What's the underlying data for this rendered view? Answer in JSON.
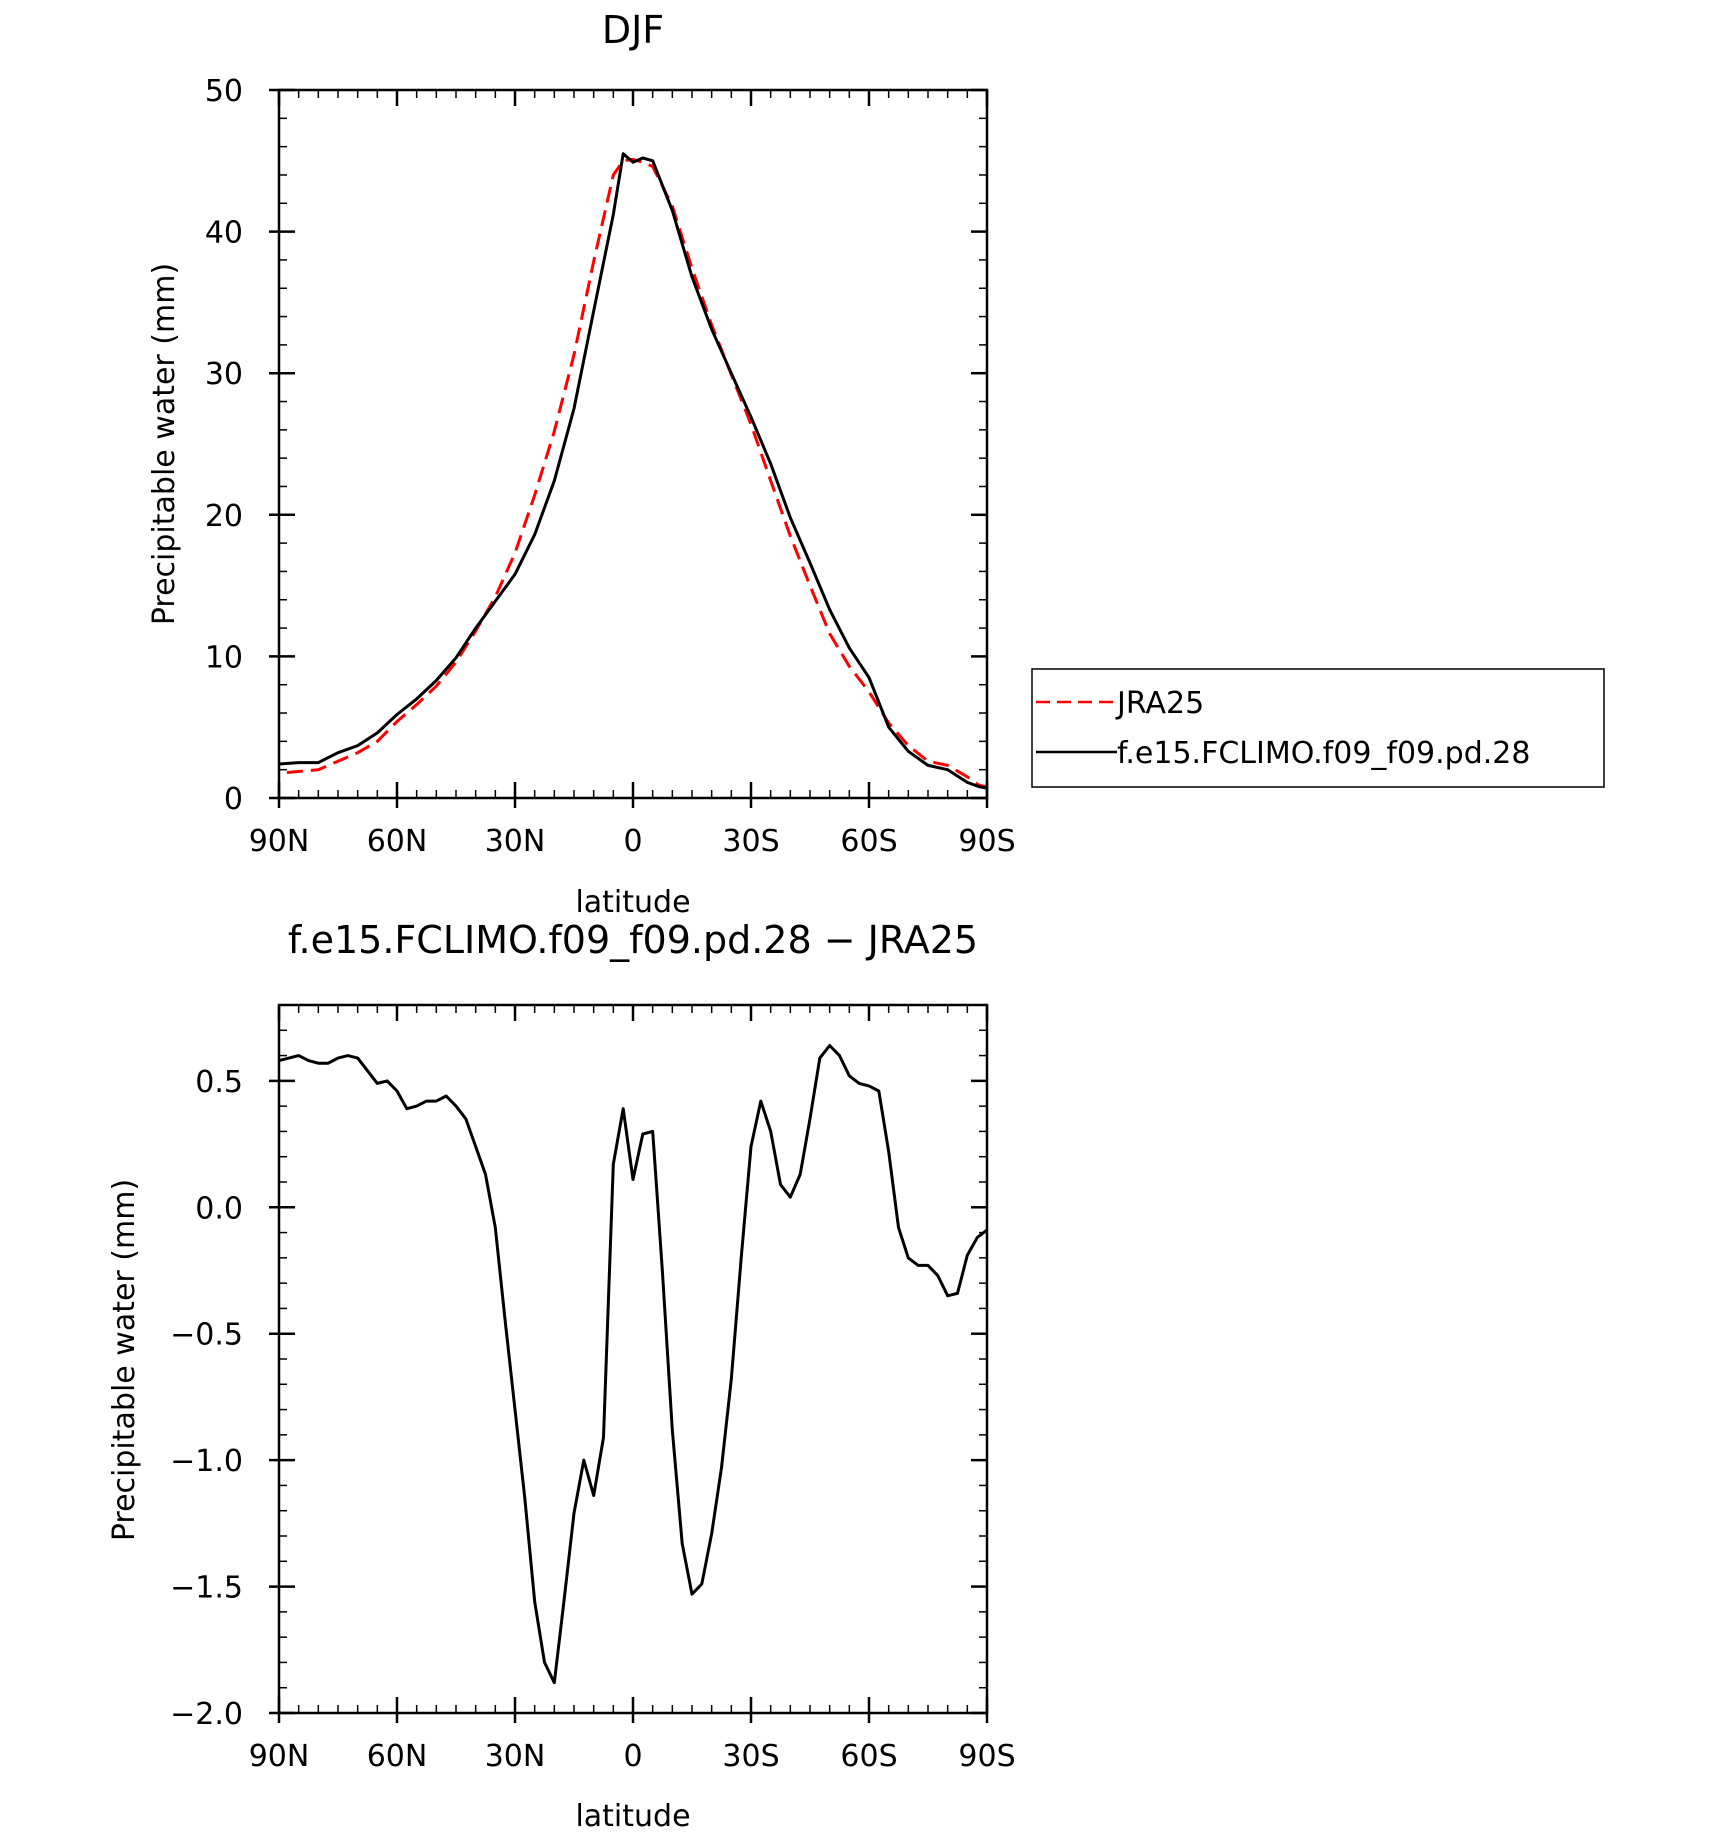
{
  "chart_data": [
    {
      "type": "line",
      "title": "DJF",
      "xlabel": "latitude",
      "ylabel": "Precipitable water (mm)",
      "xlim": [
        90,
        -90
      ],
      "ylim": [
        0,
        50
      ],
      "x_ticks": [
        90,
        60,
        30,
        0,
        -30,
        -60,
        -90
      ],
      "x_tick_labels": [
        "90N",
        "60N",
        "30N",
        "0",
        "30S",
        "60S",
        "90S"
      ],
      "y_ticks": [
        0,
        10,
        20,
        30,
        40,
        50
      ],
      "y_tick_labels": [
        "0",
        "10",
        "20",
        "30",
        "40",
        "50"
      ],
      "legend_position": "right",
      "series": [
        {
          "name": "JRA25",
          "color": "#ff0000",
          "style": "dashed",
          "x": [
            88,
            80,
            75,
            70,
            65,
            60,
            55,
            50,
            45,
            40,
            35,
            30,
            25,
            20,
            15,
            10,
            5,
            2.5,
            0,
            -2.5,
            -5,
            -10,
            -15,
            -20,
            -25,
            -30,
            -35,
            -40,
            -45,
            -50,
            -55,
            -60,
            -65,
            -70,
            -75,
            -80,
            -85,
            -88,
            -90
          ],
          "values": [
            1.8,
            2.0,
            2.6,
            3.2,
            4.0,
            5.4,
            6.6,
            7.9,
            9.6,
            11.8,
            14.2,
            17.3,
            21.4,
            25.9,
            31.3,
            37.9,
            44.0,
            45.0,
            45.1,
            44.9,
            44.6,
            41.8,
            37.4,
            33.4,
            29.9,
            26.4,
            22.4,
            18.5,
            15.0,
            11.6,
            9.3,
            7.5,
            5.3,
            3.7,
            2.6,
            2.3,
            1.5,
            0.9,
            0.8
          ]
        },
        {
          "name": "f.e15.FCLIMO.f09_f09.pd.28",
          "color": "#000000",
          "style": "solid",
          "x": [
            90,
            85,
            80,
            75,
            70,
            65,
            60,
            55,
            50,
            45,
            40,
            35,
            30,
            25,
            20,
            15,
            10,
            5,
            2.5,
            0,
            -2.5,
            -5,
            -10,
            -15,
            -20,
            -25,
            -30,
            -35,
            -40,
            -45,
            -50,
            -55,
            -60,
            -65,
            -70,
            -75,
            -80,
            -85,
            -88,
            -90
          ],
          "values": [
            2.4,
            2.5,
            2.5,
            3.2,
            3.7,
            4.6,
            5.9,
            7.0,
            8.3,
            9.9,
            12.0,
            13.9,
            15.8,
            18.6,
            22.4,
            27.5,
            34.4,
            41.2,
            45.5,
            44.9,
            45.2,
            45.0,
            41.5,
            36.8,
            33.1,
            30.0,
            26.9,
            23.6,
            19.8,
            16.6,
            13.3,
            10.6,
            8.5,
            5.0,
            3.3,
            2.3,
            2.0,
            1.1,
            0.8,
            0.7
          ]
        }
      ]
    },
    {
      "type": "line",
      "title": "f.e15.FCLIMO.f09_f09.pd.28 − JRA25",
      "xlabel": "latitude",
      "ylabel": "Precipitable water (mm)",
      "xlim": [
        90,
        -90
      ],
      "ylim": [
        -2.0,
        0.8
      ],
      "x_ticks": [
        90,
        60,
        30,
        0,
        -30,
        -60,
        -90
      ],
      "x_tick_labels": [
        "90N",
        "60N",
        "30N",
        "0",
        "30S",
        "60S",
        "90S"
      ],
      "y_ticks": [
        0.5,
        0.0,
        -0.5,
        -1.0,
        -1.5,
        -2.0
      ],
      "y_tick_labels": [
        "0.5",
        "0.0",
        "−0.5",
        "−1.0",
        "−1.5",
        "−2.0"
      ],
      "series": [
        {
          "color": "#000000",
          "style": "solid",
          "x": [
            90,
            85,
            82.5,
            80,
            77.5,
            75,
            72.5,
            70,
            65,
            62.5,
            60,
            57.5,
            55,
            52.5,
            50,
            47.5,
            45,
            42.5,
            40,
            37.5,
            35,
            32.5,
            30,
            27.5,
            25,
            22.5,
            20,
            17.5,
            15,
            12.5,
            10,
            7.5,
            5,
            2.5,
            0,
            -2.5,
            -5,
            -7.5,
            -10,
            -12.5,
            -15,
            -17.5,
            -20,
            -22.5,
            -25,
            -27.5,
            -30,
            -32.5,
            -35,
            -37.5,
            -40,
            -42.5,
            -45,
            -47.5,
            -50,
            -52.5,
            -55,
            -57.5,
            -60,
            -62.5,
            -65,
            -67.5,
            -70,
            -72.5,
            -75,
            -77.5,
            -80,
            -82.5,
            -85,
            -87.5,
            -90
          ],
          "values": [
            0.58,
            0.6,
            0.58,
            0.57,
            0.57,
            0.59,
            0.6,
            0.59,
            0.49,
            0.5,
            0.46,
            0.39,
            0.4,
            0.42,
            0.42,
            0.44,
            0.4,
            0.35,
            0.24,
            0.13,
            -0.08,
            -0.45,
            -0.8,
            -1.15,
            -1.56,
            -1.8,
            -1.88,
            -1.55,
            -1.21,
            -1.0,
            -1.14,
            -0.91,
            0.17,
            0.39,
            0.11,
            0.29,
            0.3,
            -0.26,
            -0.88,
            -1.33,
            -1.53,
            -1.49,
            -1.29,
            -1.03,
            -0.68,
            -0.2,
            0.24,
            0.42,
            0.3,
            0.09,
            0.04,
            0.13,
            0.35,
            0.59,
            0.64,
            0.6,
            0.52,
            0.49,
            0.48,
            0.46,
            0.22,
            -0.08,
            -0.2,
            -0.23,
            -0.23,
            -0.27,
            -0.35,
            -0.34,
            -0.19,
            -0.12,
            -0.09
          ]
        }
      ]
    }
  ]
}
